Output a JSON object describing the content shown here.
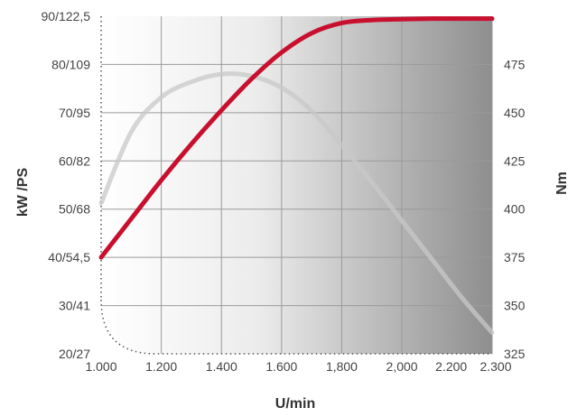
{
  "chart_data": {
    "type": "line",
    "xlabel": "U/min",
    "ylabel_left": "kW /PS",
    "ylabel_right": "Nm",
    "x_ticks": [
      {
        "value": 1000,
        "label": "1.000"
      },
      {
        "value": 1200,
        "label": "1.200"
      },
      {
        "value": 1400,
        "label": "1.400"
      },
      {
        "value": 1600,
        "label": "1.600"
      },
      {
        "value": 1800,
        "label": "1,800"
      },
      {
        "value": 2000,
        "label": "2,000"
      },
      {
        "value": 2200,
        "label": "2.200"
      },
      {
        "value": 2300,
        "label": "2.300"
      }
    ],
    "xlim": [
      1000,
      2300
    ],
    "y_left_ticks": [
      {
        "value": 20,
        "label": "20/27"
      },
      {
        "value": 30,
        "label": "30/41"
      },
      {
        "value": 40,
        "label": "40/54,5"
      },
      {
        "value": 50,
        "label": "50/68"
      },
      {
        "value": 60,
        "label": "60/82"
      },
      {
        "value": 70,
        "label": "70/95"
      },
      {
        "value": 80,
        "label": "80/109"
      },
      {
        "value": 90,
        "label": "90/122,5"
      }
    ],
    "ylim_left": [
      20,
      90
    ],
    "y_right_ticks": [
      {
        "value": 325,
        "label": "325"
      },
      {
        "value": 350,
        "label": "350"
      },
      {
        "value": 375,
        "label": "375"
      },
      {
        "value": 400,
        "label": "400"
      },
      {
        "value": 425,
        "label": "425"
      },
      {
        "value": 450,
        "label": "450"
      },
      {
        "value": 475,
        "label": "475"
      }
    ],
    "ylim_right": [
      325,
      500
    ],
    "grid": true,
    "series": [
      {
        "axis": "left",
        "color": "#c8102e",
        "x": [
          1000,
          1100,
          1200,
          1300,
          1400,
          1500,
          1600,
          1700,
          1800,
          1900,
          2000,
          2100,
          2200,
          2300
        ],
        "y": [
          40,
          48,
          56,
          63.5,
          70.5,
          77,
          82.5,
          86.5,
          88.6,
          89.2,
          89.4,
          89.5,
          89.5,
          89.5
        ]
      },
      {
        "axis": "right",
        "color": "#c8c8c8",
        "x": [
          1000,
          1100,
          1200,
          1300,
          1400,
          1500,
          1600,
          1700,
          1800,
          1900,
          2000,
          2100,
          2200,
          2300
        ],
        "y": [
          403,
          440,
          458,
          466,
          470,
          469,
          463,
          451,
          433,
          414,
          394,
          374,
          354,
          336
        ]
      }
    ]
  }
}
